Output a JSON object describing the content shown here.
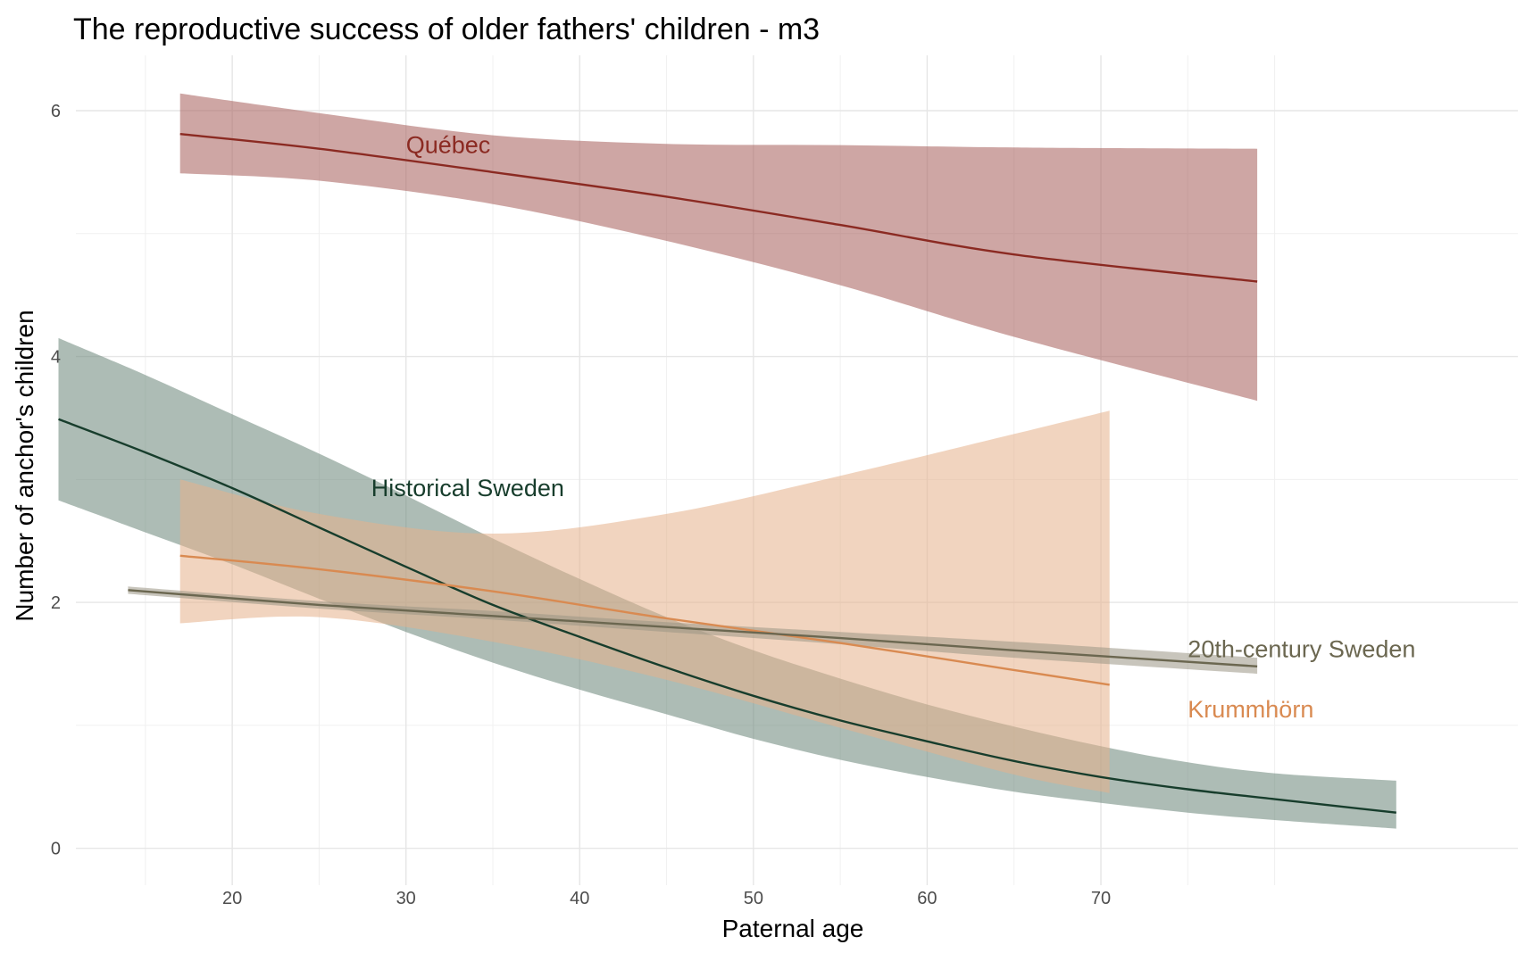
{
  "chart_data": {
    "type": "line",
    "title": "The reproductive success of older fathers' children - m3",
    "xlabel": "Paternal age",
    "ylabel": "Number of anchor's children",
    "xlim": [
      11,
      94
    ],
    "ylim": [
      -0.3,
      6.45
    ],
    "x_ticks": [
      20,
      30,
      40,
      50,
      60,
      70
    ],
    "y_ticks": [
      0,
      2,
      4,
      6
    ],
    "x_minor_ticks": [
      15,
      25,
      35,
      45,
      55,
      65,
      75,
      80
    ],
    "y_minor_ticks": [
      1,
      3,
      5
    ],
    "grid": true,
    "legend": "none",
    "series": [
      {
        "name": "Québec",
        "color": "#8b2a22",
        "band_color": "#a55c59",
        "label_pos": [
          30,
          5.72
        ],
        "x": [
          17,
          25,
          35,
          45,
          55,
          65,
          79
        ],
        "y": [
          5.81,
          5.69,
          5.5,
          5.3,
          5.07,
          4.83,
          4.61
        ],
        "lower": [
          5.49,
          5.43,
          5.24,
          4.94,
          4.58,
          4.16,
          3.64
        ],
        "upper": [
          6.14,
          5.98,
          5.8,
          5.73,
          5.72,
          5.7,
          5.69
        ]
      },
      {
        "name": "Historical Sweden",
        "color": "#173d2c",
        "band_color": "#6a8578",
        "label_pos": [
          28,
          2.93
        ],
        "x": [
          10,
          15,
          20,
          25,
          30,
          35,
          40,
          45,
          50,
          55,
          60,
          65,
          70,
          75,
          80,
          87
        ],
        "y": [
          3.49,
          3.22,
          2.93,
          2.61,
          2.29,
          1.98,
          1.72,
          1.47,
          1.24,
          1.04,
          0.87,
          0.71,
          0.58,
          0.48,
          0.4,
          0.29
        ],
        "lower": [
          2.83,
          2.57,
          2.31,
          2.03,
          1.76,
          1.51,
          1.29,
          1.09,
          0.89,
          0.72,
          0.58,
          0.46,
          0.37,
          0.29,
          0.23,
          0.16
        ],
        "upper": [
          4.15,
          3.85,
          3.53,
          3.21,
          2.87,
          2.52,
          2.19,
          1.88,
          1.61,
          1.38,
          1.17,
          0.99,
          0.83,
          0.7,
          0.61,
          0.55
        ]
      },
      {
        "name": "Krummhörn",
        "color": "#d98a51",
        "band_color": "#e5b08b",
        "label_pos": [
          75,
          1.13
        ],
        "x": [
          17,
          25,
          35,
          45,
          55,
          65,
          70.5
        ],
        "y": [
          2.38,
          2.27,
          2.09,
          1.87,
          1.67,
          1.45,
          1.33
        ],
        "lower": [
          1.83,
          1.88,
          1.68,
          1.37,
          0.98,
          0.6,
          0.45
        ],
        "upper": [
          3.0,
          2.72,
          2.56,
          2.72,
          3.03,
          3.37,
          3.56
        ]
      },
      {
        "name": "20th-century Sweden",
        "color": "#6b6750",
        "band_color": "#9a9685",
        "label_pos": [
          75,
          1.62
        ],
        "x": [
          14,
          25,
          35,
          45,
          55,
          65,
          79
        ],
        "y": [
          2.1,
          1.98,
          1.89,
          1.8,
          1.71,
          1.61,
          1.48
        ],
        "lower": [
          2.07,
          1.95,
          1.86,
          1.76,
          1.66,
          1.55,
          1.42
        ],
        "upper": [
          2.13,
          2.01,
          1.93,
          1.84,
          1.76,
          1.68,
          1.55
        ]
      }
    ]
  }
}
